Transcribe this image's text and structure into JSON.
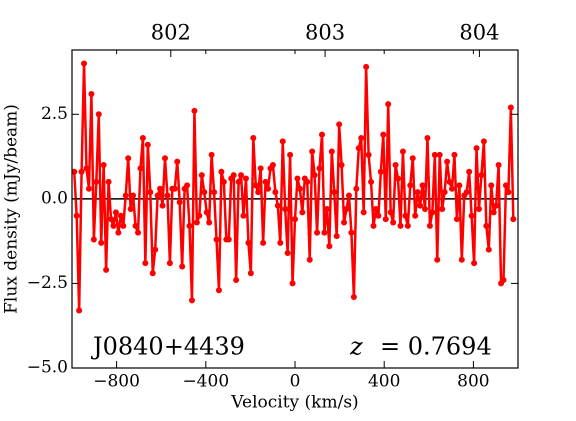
{
  "chart_data": {
    "type": "line",
    "x_label": "Velocity (km/s)",
    "y_label": "Flux density (mJy/beam)",
    "annotations": [
      "J0840+4439"
    ],
    "redshift_symbol": "z",
    "redshift": "= 0.7694",
    "color": "#ff0000",
    "hline": 0,
    "xlim": [
      -1000,
      1000
    ],
    "ylim": [
      -5.0,
      4.4
    ],
    "xticks": [
      {
        "value": -800,
        "label": "−800"
      },
      {
        "value": -400,
        "label": "−400"
      },
      0,
      400,
      800
    ],
    "yticks": [
      {
        "value": -5.0,
        "label": "−5.0"
      },
      {
        "value": -2.5,
        "label": "−2.5"
      },
      {
        "value": 0,
        "label": "0.0"
      },
      2.5
    ],
    "x2lim": [
      801.36,
      804.25
    ],
    "x2ticks": [
      802,
      803,
      804
    ],
    "x": [
      -990,
      -979,
      -968,
      -957,
      -946,
      -935,
      -924,
      -913,
      -902,
      -891,
      -880,
      -869,
      -858,
      -847,
      -836,
      -825,
      -814,
      -803,
      -792,
      -781,
      -770,
      -759,
      -748,
      -737,
      -726,
      -715,
      -704,
      -693,
      -682,
      -671,
      -660,
      -649,
      -638,
      -627,
      -616,
      -605,
      -594,
      -583,
      -572,
      -561,
      -550,
      -539,
      -528,
      -517,
      -506,
      -495,
      -484,
      -473,
      -462,
      -451,
      -440,
      -429,
      -418,
      -407,
      -396,
      -385,
      -374,
      -363,
      -352,
      -341,
      -330,
      -319,
      -308,
      -297,
      -286,
      -275,
      -264,
      -253,
      -242,
      -231,
      -220,
      -209,
      -198,
      -187,
      -176,
      -165,
      -154,
      -143,
      -132,
      -121,
      -110,
      -99,
      -88,
      -77,
      -66,
      -55,
      -44,
      -33,
      -22,
      -11,
      0,
      11,
      22,
      33,
      44,
      55,
      66,
      77,
      88,
      99,
      110,
      121,
      132,
      143,
      154,
      165,
      176,
      187,
      198,
      209,
      220,
      231,
      242,
      253,
      264,
      275,
      286,
      297,
      308,
      319,
      330,
      341,
      352,
      363,
      374,
      385,
      396,
      407,
      418,
      429,
      440,
      451,
      462,
      473,
      484,
      495,
      506,
      517,
      528,
      539,
      550,
      561,
      572,
      583,
      594,
      605,
      616,
      627,
      638,
      649,
      660,
      671,
      682,
      693,
      704,
      715,
      726,
      737,
      748,
      759,
      770,
      781,
      792,
      803,
      814,
      825,
      836,
      847,
      858,
      869,
      880,
      891,
      902,
      913,
      924,
      935,
      946,
      957,
      968,
      979
    ],
    "values": [
      0.8,
      -0.5,
      -3.3,
      0.8,
      4.0,
      0.9,
      0.3,
      3.1,
      -1.2,
      0.5,
      2.5,
      -1.3,
      1.0,
      -2.1,
      0.5,
      -0.6,
      -0.8,
      -0.4,
      -1.0,
      -0.5,
      -0.8,
      0.1,
      1.2,
      -0.3,
      0.1,
      -0.8,
      -1.0,
      0.9,
      1.8,
      -1.9,
      1.6,
      0.2,
      -2.2,
      -1.5,
      0.1,
      0.3,
      -0.2,
      1.2,
      0.1,
      -1.9,
      0.3,
      0.3,
      1.1,
      -0.1,
      -2.0,
      0.3,
      0.4,
      -0.8,
      -3.0,
      2.6,
      -0.7,
      -0.5,
      0.7,
      0.2,
      -0.4,
      -0.7,
      1.3,
      0.2,
      -1.2,
      -2.7,
      0.8,
      0.5,
      -1.2,
      -1.2,
      0.6,
      0.7,
      -2.4,
      0.5,
      0.7,
      -0.5,
      0.6,
      -1.3,
      -2.2,
      1.8,
      0.4,
      0.2,
      0.9,
      -1.3,
      0.5,
      0.3,
      0.9,
      1.0,
      0.2,
      -0.2,
      -1.3,
      1.7,
      -0.3,
      -1.6,
      1.3,
      -2.5,
      -0.6,
      0.6,
      0.3,
      -0.4,
      0.6,
      0.5,
      -1.8,
      1.4,
      0.7,
      -1.0,
      0.9,
      1.9,
      -1.0,
      -0.3,
      -1.4,
      1.4,
      0.2,
      -1.1,
      2.2,
      1.0,
      -0.7,
      -0.3,
      0.1,
      -1.0,
      -2.9,
      0.3,
      1.5,
      1.8,
      -0.4,
      3.9,
      1.3,
      0.5,
      -0.8,
      -0.3,
      -0.5,
      0.8,
      1.9,
      -0.6,
      2.8,
      -0.4,
      -0.7,
      1.0,
      0.6,
      -0.8,
      1.4,
      -0.5,
      -0.8,
      0.4,
      1.2,
      -0.5,
      0.2,
      -0.2,
      0.4,
      -0.3,
      1.8,
      -0.8,
      -0.4,
      1.3,
      -1.8,
      1.3,
      -0.3,
      0.2,
      1.1,
      0.5,
      0.3,
      1.3,
      -0.6,
      0.4,
      -1.8,
      0.1,
      0.2,
      0.8,
      -0.5,
      -1.9,
      1.5,
      -0.3,
      0.7,
      1.7,
      -0.8,
      -1.5,
      0.4,
      -0.4,
      -0.2,
      1.0,
      -2.5,
      -2.4,
      0.4,
      0.2,
      2.7,
      -0.6
    ]
  }
}
